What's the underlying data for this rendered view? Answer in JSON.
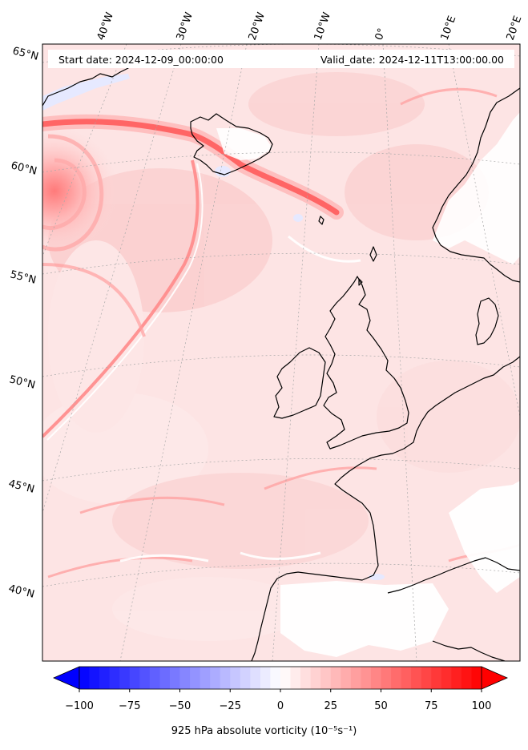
{
  "header": {
    "start": "Start date: 2024-12-09_00:00:00",
    "valid": "Valid_date: 2024-12-11T13:00:00.00"
  },
  "lon_labels": [
    "40°W",
    "30°W",
    "20°W",
    "10°W",
    "0°",
    "10°E",
    "20°E"
  ],
  "lat_labels": [
    "65°N",
    "60°N",
    "55°N",
    "50°N",
    "45°N",
    "40°N"
  ],
  "colorbar": {
    "title": "925 hPa absolute vorticity (10⁻⁵s⁻¹)",
    "ticks": [
      "−100",
      "−75",
      "−50",
      "−25",
      "0",
      "25",
      "50",
      "75",
      "100"
    ],
    "colormap": "bwr",
    "range": [
      -100,
      100
    ],
    "extend": "both"
  },
  "colors": {
    "coast": "#000000",
    "gridline": "#9a9a9a",
    "strong_positive": "#ff0000",
    "negative": "#6a7cff"
  }
}
